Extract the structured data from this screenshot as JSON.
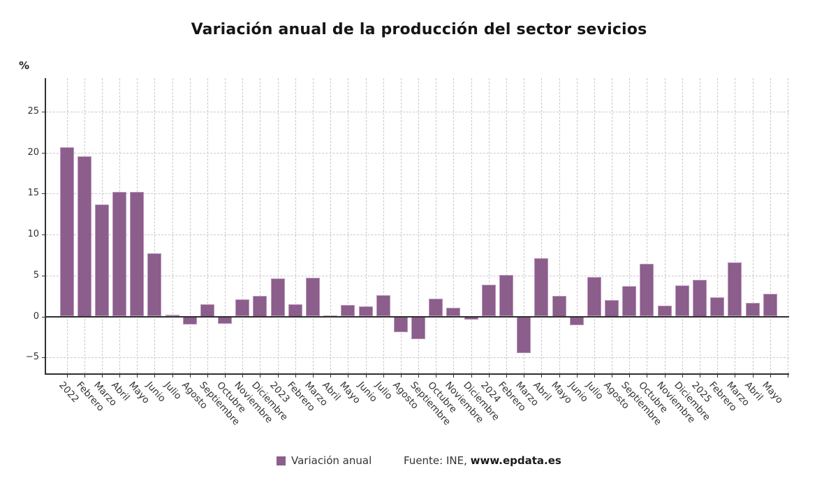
{
  "title": "Variación anual de la producción del sector sevicios",
  "unit_label": "%",
  "legend": {
    "label": "Variación anual"
  },
  "source": {
    "prefix": "Fuente: INE, ",
    "bold": "www.epdata.es"
  },
  "colors": {
    "bar_fill": "#8c5e8c",
    "bar_border": "#bb97bb",
    "axis": "#2f2f2f",
    "grid": "#c9c9c9",
    "text": "#333333"
  },
  "chart_data": {
    "type": "bar",
    "title": "Variación anual de la producción del sector sevicios",
    "ylabel": "%",
    "categories": [
      "2022",
      "Febrero",
      "Marzo",
      "Abril",
      "Mayo",
      "Junio",
      "Julio",
      "Agosto",
      "Septiembre",
      "Octubre",
      "Noviembre",
      "Diciembre",
      "2023",
      "Febrero",
      "Marzo",
      "Abril",
      "Mayo",
      "Junio",
      "Julio",
      "Agosto",
      "Septiembre",
      "Octubre",
      "Noviembre",
      "Diciembre",
      "2024",
      "Febrero",
      "Marzo",
      "Abril",
      "Mayo",
      "Junio",
      "Julio",
      "Agosto",
      "Septiembre",
      "Octubre",
      "Noviembre",
      "Diciembre",
      "2025",
      "Febrero",
      "Marzo",
      "Abril",
      "Mayo"
    ],
    "values": [
      20.6,
      19.5,
      13.7,
      15.2,
      15.2,
      7.7,
      0.2,
      -1.0,
      1.5,
      -0.9,
      2.1,
      2.5,
      4.6,
      1.5,
      4.7,
      0.1,
      1.4,
      1.2,
      2.6,
      -1.9,
      -2.8,
      2.2,
      1.1,
      -0.4,
      3.9,
      5.1,
      -4.5,
      7.1,
      2.5,
      -1.1,
      4.8,
      2.0,
      3.7,
      6.4,
      1.3,
      3.8,
      4.5,
      2.3,
      6.6,
      1.7,
      2.8
    ],
    "yticks": [
      25,
      20,
      15,
      10,
      5,
      0,
      -5
    ],
    "ylim": [
      -6.9,
      29.2
    ],
    "grid": true,
    "legend_position": "bottom",
    "series_name": "Variación anual"
  }
}
